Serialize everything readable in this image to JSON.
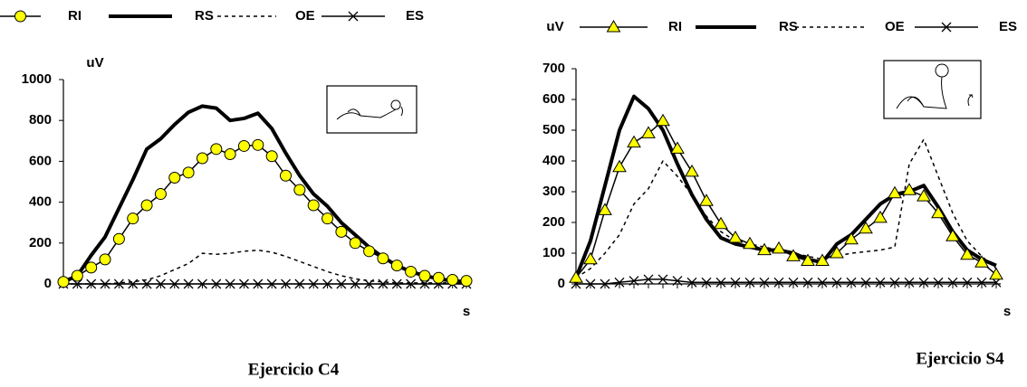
{
  "chart_data": [
    {
      "type": "line",
      "title": "Ejercicio C4",
      "ylabel": "uV",
      "xlabel": "s",
      "categories": [
        null,
        null,
        null,
        null,
        null,
        null,
        null,
        null,
        null,
        null,
        null,
        null,
        null,
        null,
        null,
        null,
        null,
        null,
        null,
        null,
        null,
        null,
        null,
        null,
        null,
        null,
        null,
        null,
        null,
        null
      ],
      "ylim": [
        0,
        1000
      ],
      "yticks": [
        0,
        200,
        400,
        600,
        800,
        1000
      ],
      "grid": false,
      "series": [
        {
          "name": "RI",
          "color": "#000000",
          "marker": "circle",
          "marker_color": "#ffff00",
          "style": "solid",
          "values": [
            10,
            40,
            80,
            120,
            220,
            320,
            385,
            440,
            520,
            545,
            615,
            660,
            635,
            675,
            680,
            625,
            530,
            460,
            385,
            320,
            255,
            200,
            160,
            125,
            90,
            60,
            40,
            30,
            20,
            15
          ]
        },
        {
          "name": "RS",
          "color": "#000000",
          "marker": "none",
          "style": "thick",
          "values": [
            10,
            40,
            140,
            230,
            370,
            510,
            660,
            710,
            780,
            840,
            870,
            860,
            800,
            810,
            835,
            760,
            640,
            530,
            440,
            380,
            300,
            240,
            180,
            130,
            90,
            60,
            40,
            25,
            15,
            10
          ]
        },
        {
          "name": "OE",
          "color": "#000000",
          "marker": "none",
          "style": "dotted",
          "values": [
            0,
            0,
            0,
            0,
            5,
            10,
            20,
            40,
            70,
            100,
            150,
            145,
            150,
            160,
            165,
            155,
            135,
            110,
            85,
            60,
            40,
            25,
            15,
            10,
            5,
            5,
            5,
            5,
            5,
            5
          ]
        },
        {
          "name": "ES",
          "color": "#000000",
          "marker": "x",
          "style": "solid",
          "values": [
            0,
            0,
            0,
            0,
            0,
            0,
            0,
            0,
            0,
            0,
            0,
            0,
            0,
            0,
            0,
            0,
            0,
            0,
            0,
            0,
            0,
            0,
            0,
            0,
            0,
            0,
            0,
            0,
            0,
            0
          ]
        }
      ]
    },
    {
      "type": "line",
      "title": "Ejercicio S4",
      "ylabel": "uV",
      "xlabel": "s",
      "categories": [
        null,
        null,
        null,
        null,
        null,
        null,
        null,
        null,
        null,
        null,
        null,
        null,
        null,
        null,
        null,
        null,
        null,
        null,
        null,
        null,
        null,
        null,
        null,
        null,
        null,
        null,
        null,
        null,
        null,
        null
      ],
      "ylim": [
        0,
        700
      ],
      "yticks": [
        0,
        100,
        200,
        300,
        400,
        500,
        600,
        700
      ],
      "grid": false,
      "series": [
        {
          "name": "RI",
          "color": "#000000",
          "marker": "triangle",
          "marker_color": "#ffff00",
          "style": "solid",
          "values": [
            20,
            80,
            240,
            380,
            460,
            490,
            530,
            440,
            365,
            270,
            195,
            150,
            130,
            110,
            115,
            90,
            75,
            75,
            100,
            145,
            180,
            215,
            295,
            305,
            285,
            230,
            155,
            95,
            70,
            30
          ]
        },
        {
          "name": "RS",
          "color": "#000000",
          "marker": "none",
          "style": "thick",
          "values": [
            20,
            140,
            320,
            500,
            610,
            570,
            500,
            390,
            290,
            210,
            150,
            130,
            120,
            110,
            110,
            100,
            80,
            70,
            130,
            160,
            210,
            260,
            290,
            300,
            320,
            250,
            170,
            110,
            80,
            60
          ]
        },
        {
          "name": "OE",
          "color": "#000000",
          "marker": "none",
          "style": "dotted",
          "values": [
            20,
            50,
            100,
            160,
            260,
            310,
            400,
            350,
            290,
            220,
            170,
            140,
            130,
            120,
            110,
            100,
            90,
            80,
            90,
            100,
            105,
            110,
            120,
            390,
            470,
            350,
            230,
            140,
            90,
            50
          ]
        },
        {
          "name": "ES",
          "color": "#000000",
          "marker": "x",
          "style": "solid",
          "values": [
            0,
            0,
            0,
            5,
            10,
            15,
            15,
            10,
            5,
            5,
            5,
            5,
            5,
            5,
            5,
            5,
            5,
            5,
            5,
            5,
            5,
            5,
            5,
            5,
            5,
            5,
            5,
            5,
            5,
            5
          ]
        }
      ]
    }
  ]
}
